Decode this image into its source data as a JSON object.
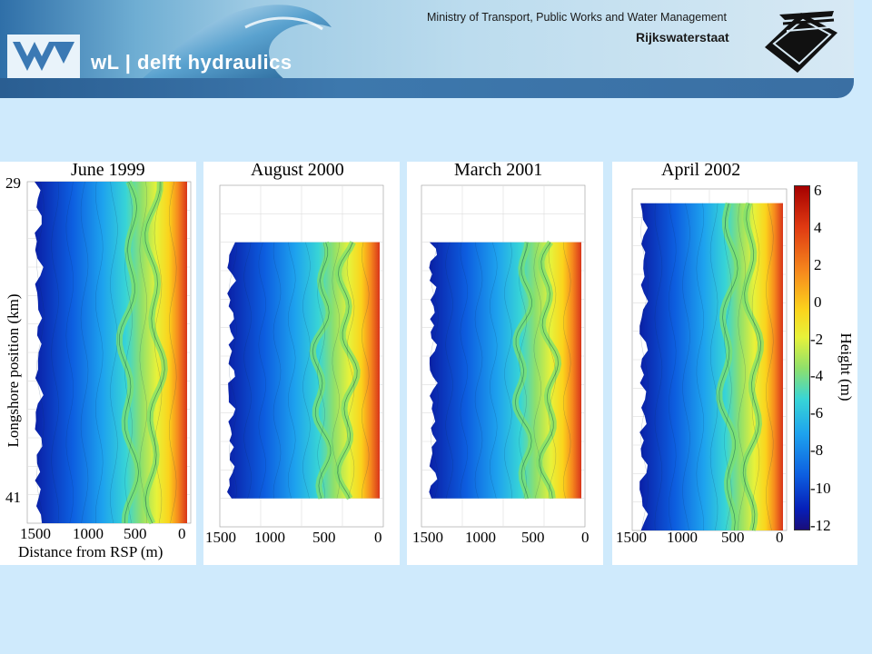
{
  "header": {
    "logo_text": "wL | delft hydraulics",
    "ministry": "Ministry of Transport, Public Works and Water Management",
    "agency": "Rijkswaterstaat"
  },
  "chart_data": {
    "type": "heatmap",
    "xlabel": "Distance from RSP (m)",
    "ylabel": "Longshore position (km)",
    "y_ticks": [
      "29",
      "41"
    ],
    "ylim": [
      41,
      29
    ],
    "xlim": [
      1500,
      0
    ],
    "colorbar": {
      "label": "Height (m)",
      "ticks": [
        "6",
        "4",
        "2",
        "0",
        "-2",
        "-4",
        "-6",
        "-8",
        "-10",
        "-12"
      ],
      "range": [
        -12,
        6
      ]
    },
    "panels": [
      {
        "title": "June 1999",
        "x_ticks": [
          "1500",
          "1000",
          "500",
          "0"
        ],
        "coverage_km": [
          29,
          41
        ]
      },
      {
        "title": "August 2000",
        "x_ticks": [
          "1500",
          "1000",
          "500",
          "0"
        ],
        "coverage_km": [
          31,
          40
        ]
      },
      {
        "title": "March 2001",
        "x_ticks": [
          "1500",
          "1000",
          "500",
          "0"
        ],
        "coverage_km": [
          31,
          40
        ]
      },
      {
        "title": "April 2002",
        "x_ticks": [
          "1500",
          "1000",
          "500",
          "0"
        ],
        "coverage_km": [
          29.5,
          41
        ]
      }
    ]
  }
}
